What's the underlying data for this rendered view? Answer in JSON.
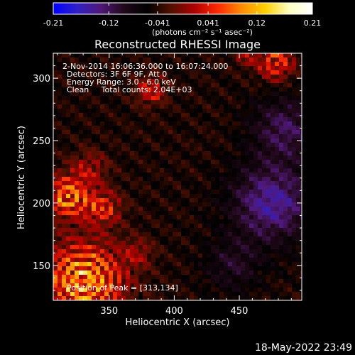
{
  "colorbar": {
    "tick_labels": [
      "-0.21",
      "-0.12",
      "-0.041",
      "0.041",
      "0.12",
      "0.21"
    ],
    "tick_values": [
      -0.21,
      -0.12,
      -0.041,
      0.041,
      0.12,
      0.21
    ],
    "range": [
      -0.21,
      0.21
    ],
    "units": "(photons cm⁻² s⁻¹ asec⁻²)",
    "stops": [
      "#0000ff",
      "#3020c8",
      "#501878",
      "#200818",
      "#000000",
      "#501000",
      "#b00000",
      "#ff2a00",
      "#ff8c00",
      "#ffd000",
      "#ffffc0",
      "#ffffff"
    ]
  },
  "chart_data": {
    "type": "heatmap",
    "title": "Reconstructed RHESSI Image",
    "xlabel": "Heliocentric X (arcsec)",
    "ylabel": "Heliocentric Y (arcsec)",
    "xlim": [
      307,
      498
    ],
    "ylim": [
      122,
      320
    ],
    "xticks": [
      350,
      400,
      450
    ],
    "yticks": [
      150,
      200,
      250,
      300
    ],
    "xtick_labels": [
      "350",
      "400",
      "450"
    ],
    "ytick_labels": [
      "150",
      "200",
      "250",
      "300"
    ],
    "annotations": [
      "2-Nov-2014 16:06:36.000 to 16:07:24.000",
      "Detectors: 3F 6F 9F, Att 0",
      "Energy Range: 3.0 - 6.0 keV",
      "Clean     Total counts: 2.04E+03"
    ],
    "peak_label": "Position of Peak = [313,134]",
    "peak": [
      313,
      134
    ],
    "value_range": [
      -0.21,
      0.21
    ],
    "bright_sources": [
      {
        "x": 330,
        "y": 138,
        "value": 0.21,
        "sigma": 22
      },
      {
        "x": 318,
        "y": 205,
        "value": 0.18,
        "sigma": 12
      },
      {
        "x": 345,
        "y": 196,
        "value": 0.12,
        "sigma": 10
      },
      {
        "x": 382,
        "y": 290,
        "value": 0.12,
        "sigma": 8
      },
      {
        "x": 478,
        "y": 312,
        "value": 0.14,
        "sigma": 10
      },
      {
        "x": 455,
        "y": 318,
        "value": 0.08,
        "sigma": 6
      },
      {
        "x": 372,
        "y": 160,
        "value": 0.07,
        "sigma": 8
      },
      {
        "x": 335,
        "y": 228,
        "value": 0.08,
        "sigma": 10
      }
    ],
    "dim_regions": [
      {
        "x": 475,
        "y": 200,
        "value": -0.17,
        "sigma": 22
      },
      {
        "x": 485,
        "y": 260,
        "value": -0.12,
        "sigma": 18
      },
      {
        "x": 445,
        "y": 150,
        "value": -0.08,
        "sigma": 15
      }
    ]
  },
  "footer": {
    "timestamp": "18-May-2022 23:49"
  }
}
